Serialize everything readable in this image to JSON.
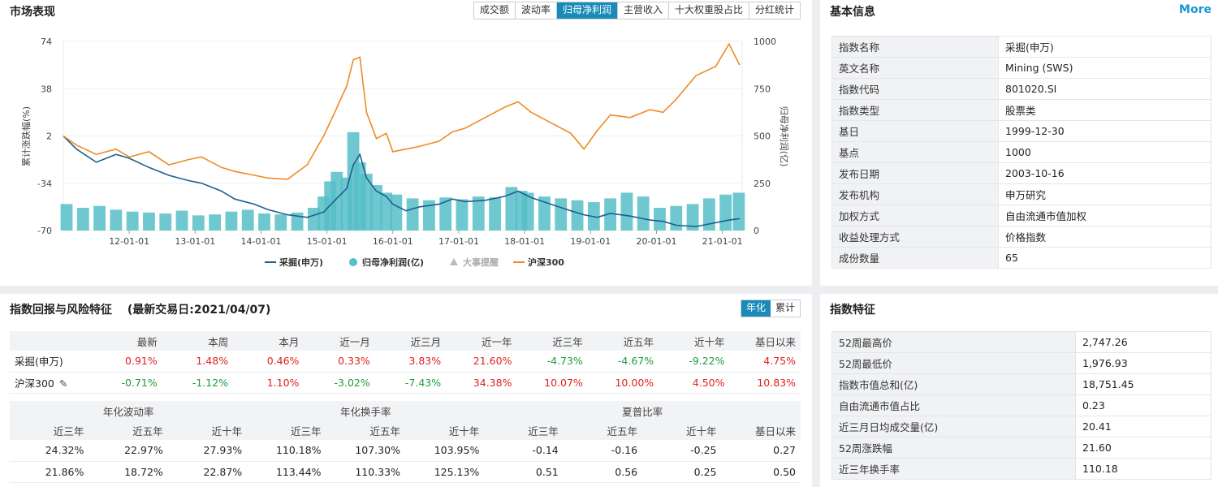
{
  "market": {
    "title": "市场表现",
    "tabs": [
      "成交额",
      "波动率",
      "归母净利润",
      "主营收入",
      "十大权重股占比",
      "分红统计"
    ],
    "active_tab": 2
  },
  "chart_data": {
    "type": "line",
    "left_axis_label": "累计涨跌幅(%)",
    "right_axis_label": "归母净利润(亿)",
    "left_ticks": [
      "74",
      "38",
      "2",
      "-34",
      "-70"
    ],
    "right_ticks": [
      "1000",
      "750",
      "500",
      "250",
      "0"
    ],
    "ylim_left": [
      -70,
      74
    ],
    "ylim_right": [
      0,
      1000
    ],
    "x_ticks": [
      "12-01-01",
      "13-01-01",
      "14-01-01",
      "15-01-01",
      "16-01-01",
      "17-01-01",
      "18-01-01",
      "19-01-01",
      "20-01-01",
      "21-01-01"
    ],
    "legend": [
      "采掘(申万)",
      "归母净利润(亿)",
      "大事提醒",
      "沪深300"
    ],
    "series": [
      {
        "name": "采掘(申万)",
        "color": "#1f5f8b",
        "x": [
          2011.0,
          2011.2,
          2011.5,
          2011.8,
          2012.0,
          2012.3,
          2012.6,
          2012.9,
          2013.1,
          2013.4,
          2013.6,
          2013.9,
          2014.1,
          2014.4,
          2014.7,
          2014.95,
          2015.1,
          2015.3,
          2015.4,
          2015.5,
          2015.6,
          2015.75,
          2015.9,
          2016.0,
          2016.2,
          2016.4,
          2016.7,
          2016.9,
          2017.1,
          2017.4,
          2017.7,
          2017.9,
          2018.1,
          2018.4,
          2018.7,
          2018.9,
          2019.1,
          2019.3,
          2019.6,
          2019.9,
          2020.1,
          2020.3,
          2020.6,
          2020.9,
          2021.1,
          2021.26
        ],
        "values": [
          2,
          -8,
          -18,
          -12,
          -15,
          -22,
          -28,
          -32,
          -34,
          -40,
          -46,
          -50,
          -54,
          -58,
          -60,
          -56,
          -48,
          -38,
          -20,
          -12,
          -30,
          -40,
          -44,
          -50,
          -55,
          -52,
          -50,
          -46,
          -48,
          -47,
          -44,
          -40,
          -45,
          -50,
          -55,
          -58,
          -60,
          -57,
          -59,
          -62,
          -63,
          -66,
          -67,
          -64,
          -62,
          -61
        ]
      },
      {
        "name": "沪深300",
        "color": "#f08a24",
        "x": [
          2011.0,
          2011.2,
          2011.5,
          2011.8,
          2012.0,
          2012.3,
          2012.6,
          2012.9,
          2013.1,
          2013.4,
          2013.6,
          2013.9,
          2014.1,
          2014.4,
          2014.7,
          2014.95,
          2015.1,
          2015.3,
          2015.4,
          2015.5,
          2015.6,
          2015.75,
          2015.9,
          2016.0,
          2016.2,
          2016.4,
          2016.7,
          2016.9,
          2017.1,
          2017.4,
          2017.7,
          2017.9,
          2018.1,
          2018.4,
          2018.7,
          2018.9,
          2019.1,
          2019.3,
          2019.6,
          2019.9,
          2020.1,
          2020.3,
          2020.6,
          2020.9,
          2021.1,
          2021.26
        ],
        "values": [
          2,
          -5,
          -12,
          -8,
          -14,
          -10,
          -20,
          -16,
          -14,
          -22,
          -25,
          -28,
          -30,
          -31,
          -20,
          2,
          18,
          40,
          60,
          62,
          20,
          0,
          4,
          -10,
          -8,
          -6,
          -2,
          5,
          8,
          16,
          24,
          28,
          20,
          12,
          4,
          -8,
          6,
          18,
          16,
          22,
          20,
          30,
          48,
          55,
          72,
          56
        ]
      }
    ],
    "bars": {
      "name": "归母净利润(亿)",
      "color": "#56bec8",
      "x": [
        2011.0,
        2011.25,
        2011.5,
        2011.75,
        2012.0,
        2012.25,
        2012.5,
        2012.75,
        2013.0,
        2013.25,
        2013.5,
        2013.75,
        2014.0,
        2014.25,
        2014.5,
        2014.75,
        2014.9,
        2015.0,
        2015.1,
        2015.25,
        2015.35,
        2015.45,
        2015.55,
        2015.7,
        2015.85,
        2016.0,
        2016.25,
        2016.5,
        2016.75,
        2017.0,
        2017.25,
        2017.5,
        2017.75,
        2017.9,
        2018.0,
        2018.25,
        2018.5,
        2018.75,
        2019.0,
        2019.25,
        2019.5,
        2019.75,
        2020.0,
        2020.25,
        2020.5,
        2020.75,
        2021.0,
        2021.2
      ],
      "values": [
        140,
        120,
        130,
        110,
        100,
        95,
        90,
        105,
        80,
        85,
        100,
        110,
        90,
        85,
        95,
        120,
        180,
        260,
        310,
        280,
        520,
        360,
        300,
        240,
        200,
        190,
        170,
        160,
        175,
        165,
        180,
        175,
        230,
        210,
        200,
        180,
        170,
        160,
        150,
        170,
        200,
        180,
        120,
        130,
        140,
        170,
        190,
        200
      ]
    }
  },
  "basic_info": {
    "title": "基本信息",
    "more": "More",
    "rows": [
      {
        "k": "指数名称",
        "v": "采掘(申万)"
      },
      {
        "k": "英文名称",
        "v": "Mining (SWS)"
      },
      {
        "k": "指数代码",
        "v": "801020.SI"
      },
      {
        "k": "指数类型",
        "v": "股票类"
      },
      {
        "k": "基日",
        "v": "1999-12-30"
      },
      {
        "k": "基点",
        "v": "1000"
      },
      {
        "k": "发布日期",
        "v": "2003-10-16"
      },
      {
        "k": "发布机构",
        "v": "申万研究"
      },
      {
        "k": "加权方式",
        "v": "自由流通市值加权"
      },
      {
        "k": "收益处理方式",
        "v": "价格指数"
      },
      {
        "k": "成份数量",
        "v": "65"
      }
    ]
  },
  "returns": {
    "title": "指数回报与风险特征",
    "date_label": "(最新交易日:2021/04/07)",
    "toggle": [
      "年化",
      "累计"
    ],
    "headers": [
      "",
      "最新",
      "本周",
      "本月",
      "近一月",
      "近三月",
      "近一年",
      "近三年",
      "近五年",
      "近十年",
      "基日以来"
    ],
    "rows": [
      {
        "name": "采掘(申万)",
        "vals": [
          "0.91%",
          "1.48%",
          "0.46%",
          "0.33%",
          "3.83%",
          "21.60%",
          "-4.73%",
          "-4.67%",
          "-9.22%",
          "4.75%"
        ],
        "colors": [
          "red",
          "red",
          "red",
          "red",
          "red",
          "red",
          "green",
          "green",
          "green",
          "red"
        ]
      },
      {
        "name": "沪深300",
        "vals": [
          "-0.71%",
          "-1.12%",
          "1.10%",
          "-3.02%",
          "-7.43%",
          "34.38%",
          "10.07%",
          "10.00%",
          "4.50%",
          "10.83%"
        ],
        "colors": [
          "green",
          "green",
          "red",
          "green",
          "green",
          "red",
          "red",
          "red",
          "red",
          "red"
        ]
      }
    ],
    "group_headers": [
      "年化波动率",
      "年化换手率",
      "夏普比率"
    ],
    "sub_headers": [
      "近三年",
      "近五年",
      "近十年",
      "近三年",
      "近五年",
      "近十年",
      "近三年",
      "近五年",
      "近十年",
      "基日以来"
    ],
    "risk_rows": [
      [
        "24.32%",
        "22.97%",
        "27.93%",
        "110.18%",
        "107.30%",
        "103.95%",
        "-0.14",
        "-0.16",
        "-0.25",
        "0.27"
      ],
      [
        "21.86%",
        "18.72%",
        "22.87%",
        "113.44%",
        "110.33%",
        "125.13%",
        "0.51",
        "0.56",
        "0.25",
        "0.50"
      ]
    ]
  },
  "features": {
    "title": "指数特征",
    "rows": [
      {
        "k": "52周最高价",
        "v": "2,747.26"
      },
      {
        "k": "52周最低价",
        "v": "1,976.93"
      },
      {
        "k": "指数市值总和(亿)",
        "v": "18,751.45"
      },
      {
        "k": "自由流通市值占比",
        "v": "0.23"
      },
      {
        "k": "近三月日均成交量(亿)",
        "v": "20.41"
      },
      {
        "k": "52周涨跌幅",
        "v": "21.60"
      },
      {
        "k": "近三年换手率",
        "v": "110.18"
      }
    ]
  }
}
